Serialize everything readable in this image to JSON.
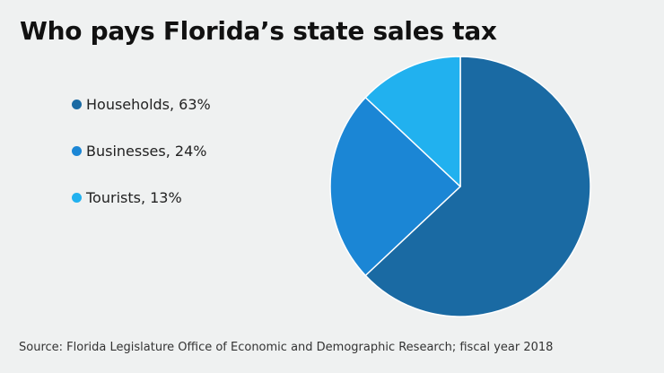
{
  "chart_data": {
    "type": "pie",
    "title": "Who pays Florida’s state sales tax",
    "slices": [
      {
        "label": "Households",
        "value": 63,
        "color": "#1a6aa3",
        "legend_text": "Households, 63%"
      },
      {
        "label": "Businesses",
        "value": 24,
        "color": "#1b86d5",
        "legend_text": "Businesses, 24%"
      },
      {
        "label": "Tourists",
        "value": 13,
        "color": "#21b1ef",
        "legend_text": "Tourists, 13%"
      }
    ],
    "start_angle_deg": 0,
    "direction": "clockwise",
    "legend_position": "left",
    "slice_border_color": "#ffffff",
    "source": "Source: Florida Legislature Office of Economic and Demographic Research; fiscal year 2018"
  },
  "background_color": "#eff1f1"
}
